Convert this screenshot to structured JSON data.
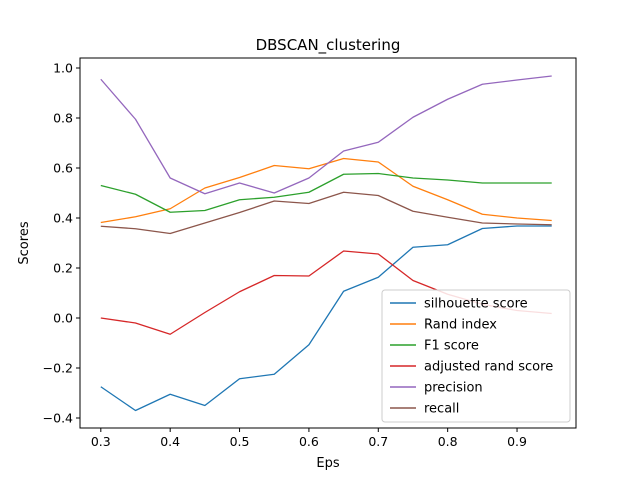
{
  "chart_data": {
    "type": "line",
    "title": "DBSCAN_clustering",
    "xlabel": "Eps",
    "ylabel": "Scores",
    "xlim": [
      0.27,
      0.985
    ],
    "ylim": [
      -0.44,
      1.04
    ],
    "xticks": [
      0.3,
      0.4,
      0.5,
      0.6,
      0.7,
      0.8,
      0.9
    ],
    "xtick_labels": [
      "0.3",
      "0.4",
      "0.5",
      "0.6",
      "0.7",
      "0.8",
      "0.9"
    ],
    "yticks": [
      -0.4,
      -0.2,
      0.0,
      0.2,
      0.4,
      0.6,
      0.8,
      1.0
    ],
    "ytick_labels": [
      "−0.4",
      "−0.2",
      "0.0",
      "0.2",
      "0.4",
      "0.6",
      "0.8",
      "1.0"
    ],
    "grid": false,
    "legend_position": "lower-right",
    "x": [
      0.3,
      0.35,
      0.4,
      0.45,
      0.5,
      0.55,
      0.6,
      0.65,
      0.7,
      0.75,
      0.8,
      0.85,
      0.9,
      0.95
    ],
    "series": [
      {
        "name": "silhouette score",
        "color": "#1f77b4",
        "values": [
          -0.275,
          -0.37,
          -0.305,
          -0.35,
          -0.243,
          -0.225,
          -0.107,
          0.107,
          0.163,
          0.283,
          0.293,
          0.358,
          0.368,
          0.368
        ]
      },
      {
        "name": "Rand index",
        "color": "#ff7f0e",
        "values": [
          0.382,
          0.405,
          0.437,
          0.52,
          0.562,
          0.61,
          0.597,
          0.638,
          0.624,
          0.527,
          0.473,
          0.415,
          0.4,
          0.39
        ]
      },
      {
        "name": "F1 score",
        "color": "#2ca02c",
        "values": [
          0.53,
          0.495,
          0.423,
          0.43,
          0.473,
          0.483,
          0.503,
          0.575,
          0.578,
          0.56,
          0.552,
          0.54,
          0.54,
          0.54
        ]
      },
      {
        "name": "adjusted rand score",
        "color": "#d62728",
        "values": [
          0.0,
          -0.02,
          -0.065,
          0.022,
          0.105,
          0.17,
          0.168,
          0.268,
          0.256,
          0.15,
          0.095,
          0.055,
          0.03,
          0.018
        ]
      },
      {
        "name": "precision",
        "color": "#9467bd",
        "values": [
          0.955,
          0.795,
          0.56,
          0.497,
          0.54,
          0.5,
          0.56,
          0.668,
          0.703,
          0.803,
          0.875,
          0.935,
          0.952,
          0.968
        ]
      },
      {
        "name": "recall",
        "color": "#8c564b",
        "values": [
          0.367,
          0.357,
          0.338,
          0.38,
          0.422,
          0.468,
          0.458,
          0.503,
          0.49,
          0.427,
          0.403,
          0.38,
          0.376,
          0.373
        ]
      }
    ]
  }
}
